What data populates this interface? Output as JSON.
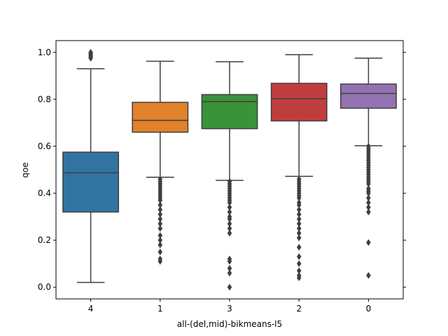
{
  "chart_data": {
    "type": "box",
    "xlabel": "all-(del,mid)-bikmeans-l5",
    "ylabel": "qoe",
    "ylim": [
      -0.05,
      1.05
    ],
    "yticks": [
      0.0,
      0.2,
      0.4,
      0.6,
      0.8,
      1.0
    ],
    "ytick_labels": [
      "0.0",
      "0.2",
      "0.4",
      "0.6",
      "0.8",
      "1.0"
    ],
    "grid": false,
    "categories": [
      "4",
      "1",
      "3",
      "2",
      "0"
    ],
    "boxes": [
      {
        "category": "4",
        "color": "#3274a1",
        "whisker_low": 0.02,
        "q1": 0.32,
        "median": 0.487,
        "q3": 0.575,
        "whisker_high": 0.93,
        "outliers": [
          0.975,
          0.98,
          0.985,
          0.99,
          0.995,
          1.0
        ]
      },
      {
        "category": "1",
        "color": "#e1812c",
        "whisker_low": 0.468,
        "q1": 0.66,
        "median": 0.71,
        "q3": 0.787,
        "whisker_high": 0.962,
        "outliers": [
          0.11,
          0.12,
          0.15,
          0.18,
          0.2,
          0.22,
          0.25,
          0.27,
          0.29,
          0.31,
          0.33,
          0.35,
          0.37,
          0.38,
          0.39,
          0.4,
          0.41,
          0.42,
          0.43,
          0.44,
          0.45,
          0.46
        ]
      },
      {
        "category": "3",
        "color": "#3a923a",
        "whisker_low": 0.455,
        "q1": 0.675,
        "median": 0.79,
        "q3": 0.82,
        "whisker_high": 0.96,
        "outliers": [
          0.0,
          0.06,
          0.08,
          0.11,
          0.12,
          0.23,
          0.25,
          0.27,
          0.29,
          0.3,
          0.32,
          0.34,
          0.36,
          0.37,
          0.38,
          0.39,
          0.4,
          0.41,
          0.42,
          0.43,
          0.44,
          0.45
        ]
      },
      {
        "category": "2",
        "color": "#c03d3e",
        "whisker_low": 0.472,
        "q1": 0.708,
        "median": 0.802,
        "q3": 0.868,
        "whisker_high": 0.99,
        "outliers": [
          0.04,
          0.05,
          0.07,
          0.1,
          0.13,
          0.17,
          0.21,
          0.23,
          0.25,
          0.27,
          0.29,
          0.31,
          0.33,
          0.35,
          0.36,
          0.38,
          0.39,
          0.4,
          0.41,
          0.42,
          0.43,
          0.44,
          0.45,
          0.46
        ]
      },
      {
        "category": "0",
        "color": "#9372b2",
        "whisker_low": 0.602,
        "q1": 0.762,
        "median": 0.825,
        "q3": 0.865,
        "whisker_high": 0.975,
        "outliers": [
          0.05,
          0.19,
          0.32,
          0.34,
          0.36,
          0.38,
          0.4,
          0.41,
          0.42,
          0.44,
          0.45,
          0.46,
          0.47,
          0.48,
          0.49,
          0.5,
          0.51,
          0.52,
          0.53,
          0.54,
          0.55,
          0.56,
          0.57,
          0.58,
          0.59,
          0.6
        ]
      }
    ]
  }
}
